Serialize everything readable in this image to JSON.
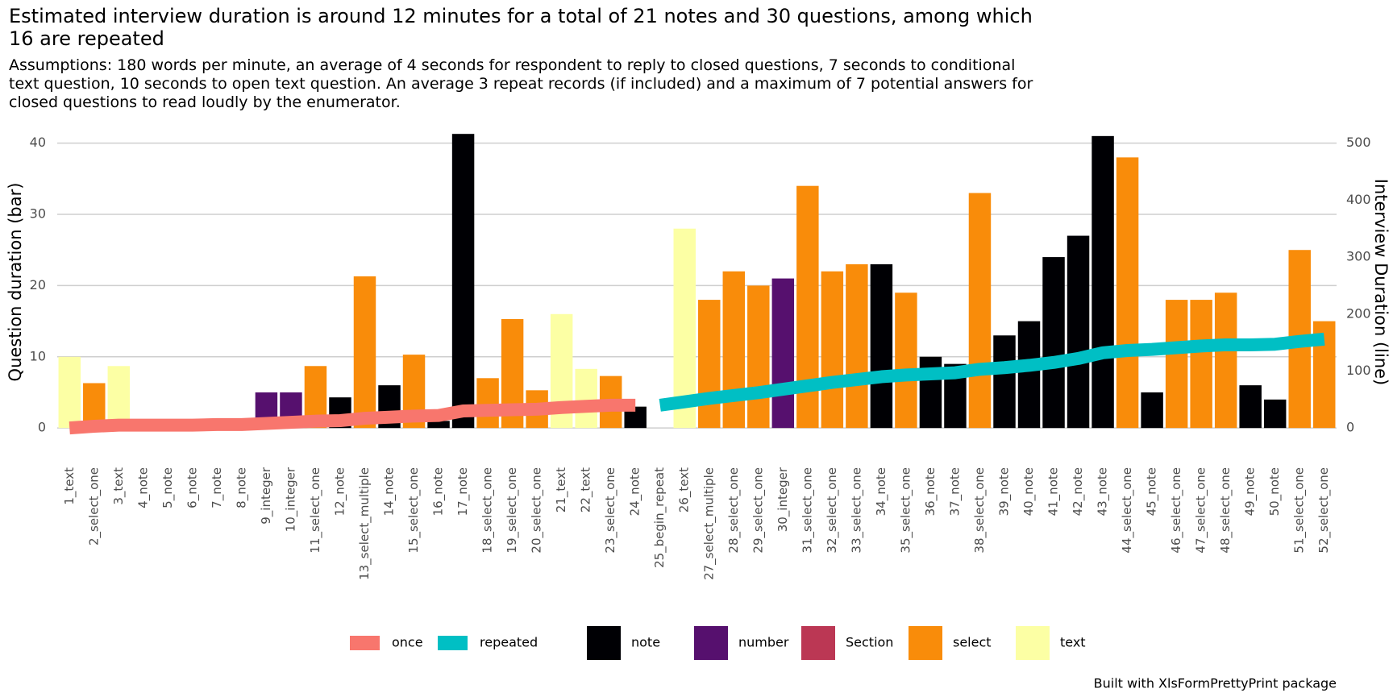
{
  "chart_data": {
    "type": "bar-line",
    "title": "Estimated interview duration is around 12 minutes for a total of 21 notes and 30 questions, among which 16 are repeated",
    "subtitle": "Assumptions: 180 words per minute, an average of 4 seconds for respondent to reply to closed questions, 7 seconds to conditional text question, 10 seconds to open text question. An average 3 repeat records (if included) and a maximum of 7 potential answers for closed questions to read loudly by the enumerator.",
    "ylabel": "Question duration (bar)",
    "y2label": "Interview Duration (line)",
    "caption": "Built with XlsFormPrettyPrint package",
    "categories": [
      "1_text",
      "2_select_one",
      "3_text",
      "4_note",
      "5_note",
      "6_note",
      "7_note",
      "8_note",
      "9_integer",
      "10_integer",
      "11_select_one",
      "12_note",
      "13_select_multiple",
      "14_note",
      "15_select_one",
      "16_note",
      "17_note",
      "18_select_one",
      "19_select_one",
      "20_select_one",
      "21_text",
      "22_text",
      "23_select_one",
      "24_note",
      "25_begin_repeat",
      "26_text",
      "27_select_multiple",
      "28_select_one",
      "29_select_one",
      "30_integer",
      "31_select_one",
      "32_select_one",
      "33_select_one",
      "34_note",
      "35_select_one",
      "36_note",
      "37_note",
      "38_select_one",
      "39_note",
      "40_note",
      "41_note",
      "42_note",
      "43_note",
      "44_select_one",
      "45_note",
      "46_select_one",
      "47_select_one",
      "48_select_one",
      "49_note",
      "50_note",
      "51_select_one",
      "52_select_one"
    ],
    "series": [
      {
        "name": "note",
        "color": "#000004",
        "values": [
          null,
          null,
          null,
          0,
          0,
          0,
          0,
          0,
          null,
          null,
          null,
          4.3,
          null,
          6,
          null,
          1,
          41.3,
          null,
          null,
          null,
          null,
          null,
          null,
          3,
          null,
          null,
          null,
          null,
          null,
          null,
          null,
          null,
          null,
          23,
          null,
          10,
          9,
          null,
          13,
          15,
          24,
          27,
          41,
          null,
          5,
          null,
          null,
          null,
          6,
          4,
          null,
          null
        ]
      },
      {
        "name": "number",
        "color": "#56106e",
        "values": [
          null,
          null,
          null,
          null,
          null,
          null,
          null,
          null,
          5,
          5,
          null,
          null,
          null,
          null,
          null,
          null,
          null,
          null,
          null,
          null,
          null,
          null,
          null,
          null,
          null,
          null,
          null,
          null,
          null,
          21,
          null,
          null,
          null,
          null,
          null,
          null,
          null,
          null,
          null,
          null,
          null,
          null,
          null,
          null,
          null,
          null,
          null,
          null,
          null,
          null,
          null,
          null
        ]
      },
      {
        "name": "Section",
        "color": "#bb3754",
        "values": [
          null,
          null,
          null,
          null,
          null,
          null,
          null,
          null,
          null,
          null,
          null,
          null,
          null,
          null,
          null,
          null,
          null,
          null,
          null,
          null,
          null,
          null,
          null,
          null,
          0,
          null,
          null,
          null,
          null,
          null,
          null,
          null,
          null,
          null,
          null,
          null,
          null,
          null,
          null,
          null,
          null,
          null,
          null,
          null,
          null,
          null,
          null,
          null,
          null,
          null,
          null,
          null
        ]
      },
      {
        "name": "select",
        "color": "#f98c0a",
        "values": [
          null,
          6.3,
          null,
          null,
          null,
          null,
          null,
          null,
          null,
          null,
          8.7,
          null,
          21.3,
          null,
          10.3,
          null,
          null,
          7,
          15.3,
          5.3,
          null,
          null,
          7.3,
          null,
          null,
          null,
          18,
          22,
          20,
          null,
          34,
          22,
          23,
          null,
          19,
          null,
          null,
          33,
          null,
          null,
          null,
          null,
          null,
          38,
          null,
          18,
          18,
          19,
          null,
          null,
          25,
          15
        ]
      },
      {
        "name": "text",
        "color": "#fcffa4",
        "values": [
          10,
          null,
          8.7,
          null,
          null,
          null,
          null,
          null,
          null,
          null,
          null,
          null,
          null,
          null,
          null,
          null,
          null,
          null,
          null,
          null,
          16,
          8.3,
          null,
          null,
          null,
          28,
          null,
          null,
          null,
          null,
          null,
          null,
          null,
          null,
          null,
          null,
          null,
          null,
          null,
          null,
          null,
          null,
          null,
          null,
          null,
          null,
          null,
          null,
          null,
          null,
          null,
          null
        ]
      },
      {
        "name": "once",
        "color": "#f8766d",
        "axis": "y2",
        "values": [
          0,
          3,
          5,
          5,
          5,
          5,
          6,
          6,
          8,
          10,
          12,
          13,
          17,
          19,
          21,
          22,
          30,
          31,
          32,
          33,
          36,
          38,
          40,
          40,
          null,
          null,
          null,
          null,
          null,
          null,
          null,
          null,
          null,
          null,
          null,
          null,
          null,
          null,
          null,
          null,
          null,
          null,
          null,
          null,
          null,
          null,
          null,
          null,
          null,
          null,
          null,
          null
        ]
      },
      {
        "name": "repeated",
        "color": "#00bfc4",
        "axis": "y2",
        "values": [
          null,
          null,
          null,
          null,
          null,
          null,
          null,
          null,
          null,
          null,
          null,
          null,
          null,
          null,
          null,
          null,
          null,
          null,
          null,
          null,
          null,
          null,
          null,
          null,
          40,
          46,
          52,
          57,
          62,
          68,
          74,
          80,
          85,
          90,
          93,
          95,
          97,
          103,
          106,
          110,
          115,
          122,
          132,
          136,
          138,
          141,
          144,
          146,
          146,
          147,
          152,
          156
        ]
      }
    ],
    "ylim": [
      -1,
      42
    ],
    "yticks": [
      0,
      10,
      20,
      30,
      40
    ],
    "y2lim": [
      -12.5,
      525
    ],
    "y2ticks": [
      0,
      100,
      200,
      300,
      400,
      500
    ],
    "grid": true,
    "legend": "bottom"
  }
}
